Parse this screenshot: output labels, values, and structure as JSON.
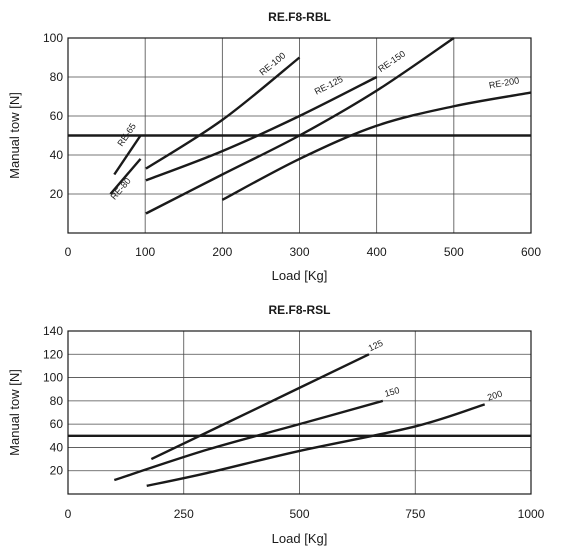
{
  "chart_data": [
    {
      "type": "line",
      "title": "RE.F8-RBL",
      "xlabel": "Load [Kg]",
      "ylabel": "Manual tow [N]",
      "xlim": [
        0,
        600
      ],
      "ylim": [
        0,
        100
      ],
      "xticks": [
        "0",
        "100",
        "200",
        "300",
        "400",
        "500",
        "600"
      ],
      "yticks": [
        "20",
        "40",
        "60",
        "80",
        "100"
      ],
      "grid": true,
      "reference_line": 50,
      "series": [
        {
          "name": "RE-65",
          "x": [
            60,
            94
          ],
          "y": [
            30,
            50
          ]
        },
        {
          "name": "RE-80",
          "x": [
            55,
            94
          ],
          "y": [
            20,
            38
          ]
        },
        {
          "name": "RE-100",
          "x": [
            101,
            200,
            300
          ],
          "y": [
            33,
            58,
            90
          ]
        },
        {
          "name": "RE-125",
          "x": [
            101,
            200,
            300,
            400
          ],
          "y": [
            27,
            42,
            60,
            80
          ]
        },
        {
          "name": "RE-150",
          "x": [
            101,
            200,
            300,
            400,
            500
          ],
          "y": [
            10,
            30,
            50,
            73,
            100
          ]
        },
        {
          "name": "RE-200",
          "x": [
            200,
            300,
            400,
            500,
            600
          ],
          "y": [
            17,
            38,
            55,
            65,
            72
          ]
        }
      ]
    },
    {
      "type": "line",
      "title": "RE.F8-RSL",
      "xlabel": "Load [Kg]",
      "ylabel": "Manual tow [N]",
      "xlim": [
        0,
        1000
      ],
      "ylim": [
        0,
        140
      ],
      "xticks": [
        "0",
        "250",
        "500",
        "750",
        "1000"
      ],
      "yticks": [
        "20",
        "40",
        "60",
        "80",
        "100",
        "120",
        "140"
      ],
      "grid": true,
      "reference_line": 50,
      "series": [
        {
          "name": "125",
          "x": [
            180,
            400,
            650
          ],
          "y": [
            30,
            72,
            120
          ]
        },
        {
          "name": "150",
          "x": [
            100,
            300,
            500,
            680
          ],
          "y": [
            12,
            38,
            60,
            80
          ]
        },
        {
          "name": "200",
          "x": [
            170,
            300,
            500,
            750,
            900
          ],
          "y": [
            7,
            18,
            37,
            58,
            77
          ]
        }
      ]
    }
  ]
}
